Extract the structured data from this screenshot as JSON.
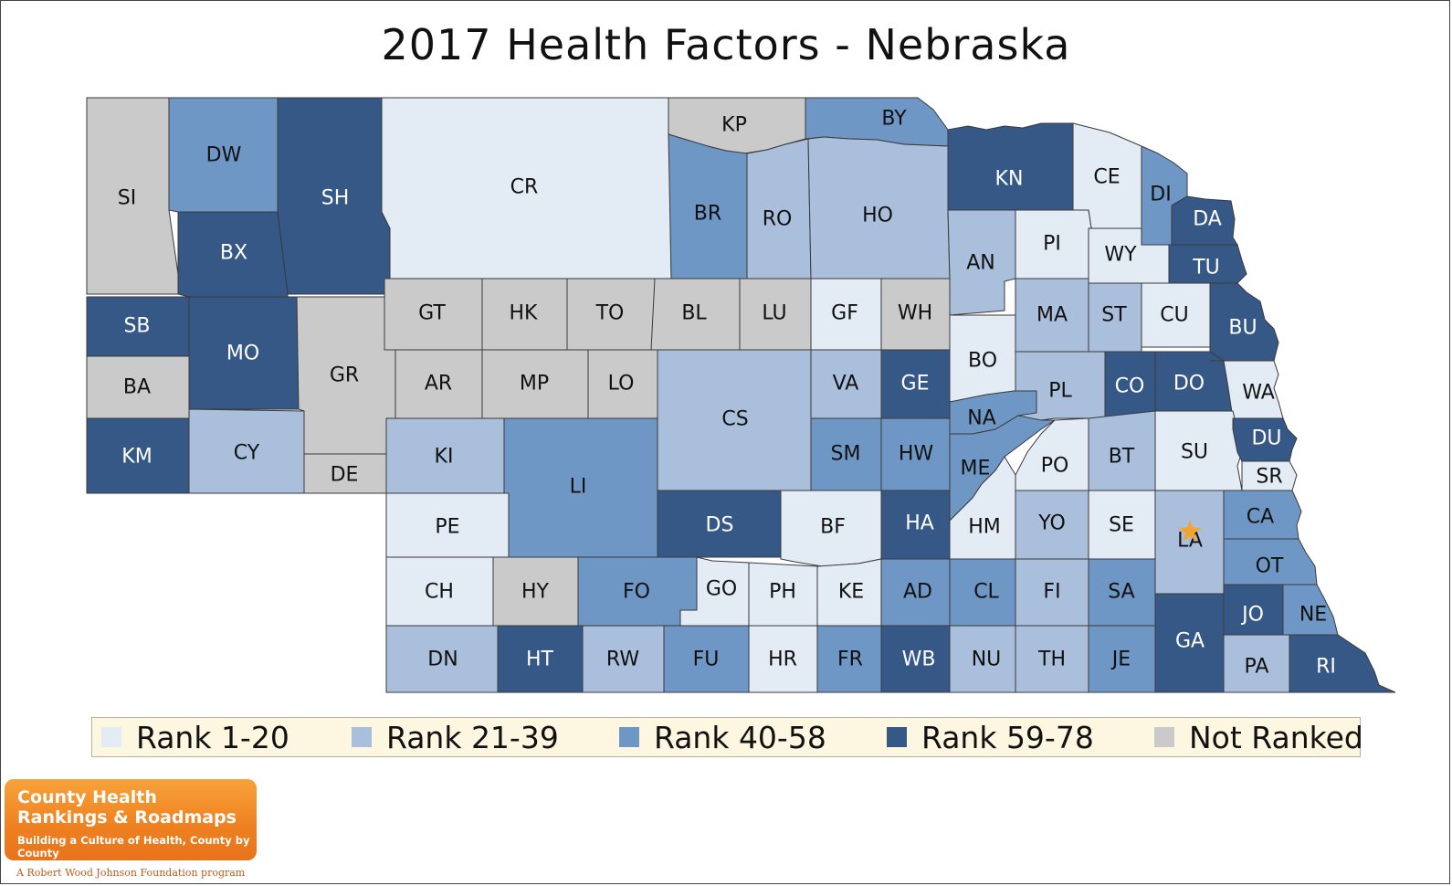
{
  "title": "2017 Health Factors - Nebraska",
  "colors": {
    "rank_1_20": "#e3ebf5",
    "rank_21_39": "#a9bfdc",
    "rank_40_58": "#6f97c6",
    "rank_59_78": "#355886",
    "not_ranked": "#cacaca",
    "star": "#f0a531",
    "label_dark_text": "#ffffff",
    "label_light_text": "#111111"
  },
  "legend": [
    {
      "label": "Rank 1-20",
      "cat": "rank_1_20"
    },
    {
      "label": "Rank 21-39",
      "cat": "rank_21_39"
    },
    {
      "label": "Rank 40-58",
      "cat": "rank_40_58"
    },
    {
      "label": "Rank 59-78",
      "cat": "rank_59_78"
    },
    {
      "label": "Not Ranked",
      "cat": "not_ranked"
    }
  ],
  "counties": [
    {
      "code": "SI",
      "cat": "not_ranked"
    },
    {
      "code": "DW",
      "cat": "rank_40_58"
    },
    {
      "code": "SH",
      "cat": "rank_59_78"
    },
    {
      "code": "CR",
      "cat": "rank_1_20"
    },
    {
      "code": "KP",
      "cat": "not_ranked"
    },
    {
      "code": "BY",
      "cat": "rank_40_58"
    },
    {
      "code": "BR",
      "cat": "rank_40_58"
    },
    {
      "code": "RO",
      "cat": "rank_21_39"
    },
    {
      "code": "HO",
      "cat": "rank_21_39"
    },
    {
      "code": "KN",
      "cat": "rank_59_78"
    },
    {
      "code": "CE",
      "cat": "rank_1_20"
    },
    {
      "code": "DI",
      "cat": "rank_40_58"
    },
    {
      "code": "DA",
      "cat": "rank_59_78"
    },
    {
      "code": "BX",
      "cat": "rank_59_78"
    },
    {
      "code": "AN",
      "cat": "rank_21_39"
    },
    {
      "code": "PI",
      "cat": "rank_1_20"
    },
    {
      "code": "WY",
      "cat": "rank_1_20"
    },
    {
      "code": "TU",
      "cat": "rank_59_78"
    },
    {
      "code": "SB",
      "cat": "rank_59_78"
    },
    {
      "code": "MO",
      "cat": "rank_59_78"
    },
    {
      "code": "GR",
      "cat": "not_ranked"
    },
    {
      "code": "GT",
      "cat": "not_ranked"
    },
    {
      "code": "HK",
      "cat": "not_ranked"
    },
    {
      "code": "TO",
      "cat": "not_ranked"
    },
    {
      "code": "BL",
      "cat": "not_ranked"
    },
    {
      "code": "LU",
      "cat": "not_ranked"
    },
    {
      "code": "GF",
      "cat": "rank_1_20"
    },
    {
      "code": "WH",
      "cat": "not_ranked"
    },
    {
      "code": "MA",
      "cat": "rank_21_39"
    },
    {
      "code": "ST",
      "cat": "rank_21_39"
    },
    {
      "code": "CU",
      "cat": "rank_1_20"
    },
    {
      "code": "BU",
      "cat": "rank_59_78"
    },
    {
      "code": "BA",
      "cat": "not_ranked"
    },
    {
      "code": "AR",
      "cat": "not_ranked"
    },
    {
      "code": "MP",
      "cat": "not_ranked"
    },
    {
      "code": "LO",
      "cat": "not_ranked"
    },
    {
      "code": "CS",
      "cat": "rank_21_39"
    },
    {
      "code": "VA",
      "cat": "rank_21_39"
    },
    {
      "code": "GE",
      "cat": "rank_59_78"
    },
    {
      "code": "BO",
      "cat": "rank_1_20"
    },
    {
      "code": "PL",
      "cat": "rank_21_39"
    },
    {
      "code": "CO",
      "cat": "rank_59_78"
    },
    {
      "code": "DO",
      "cat": "rank_59_78"
    },
    {
      "code": "WA",
      "cat": "rank_1_20"
    },
    {
      "code": "NA",
      "cat": "rank_40_58"
    },
    {
      "code": "KM",
      "cat": "rank_59_78"
    },
    {
      "code": "CY",
      "cat": "rank_21_39"
    },
    {
      "code": "DE",
      "cat": "not_ranked"
    },
    {
      "code": "KI",
      "cat": "rank_21_39"
    },
    {
      "code": "LI",
      "cat": "rank_40_58"
    },
    {
      "code": "SM",
      "cat": "rank_40_58"
    },
    {
      "code": "HW",
      "cat": "rank_40_58"
    },
    {
      "code": "ME",
      "cat": "rank_40_58"
    },
    {
      "code": "PO",
      "cat": "rank_1_20"
    },
    {
      "code": "BT",
      "cat": "rank_21_39"
    },
    {
      "code": "SU",
      "cat": "rank_1_20"
    },
    {
      "code": "DU",
      "cat": "rank_59_78"
    },
    {
      "code": "SR",
      "cat": "rank_1_20"
    },
    {
      "code": "PE",
      "cat": "rank_1_20"
    },
    {
      "code": "DS",
      "cat": "rank_59_78"
    },
    {
      "code": "BF",
      "cat": "rank_1_20"
    },
    {
      "code": "HA",
      "cat": "rank_59_78"
    },
    {
      "code": "HM",
      "cat": "rank_1_20"
    },
    {
      "code": "YO",
      "cat": "rank_21_39"
    },
    {
      "code": "SE",
      "cat": "rank_1_20"
    },
    {
      "code": "LA",
      "cat": "rank_21_39"
    },
    {
      "code": "CA",
      "cat": "rank_40_58"
    },
    {
      "code": "CH",
      "cat": "rank_1_20"
    },
    {
      "code": "HY",
      "cat": "not_ranked"
    },
    {
      "code": "FO",
      "cat": "rank_40_58"
    },
    {
      "code": "GO",
      "cat": "rank_1_20"
    },
    {
      "code": "PH",
      "cat": "rank_1_20"
    },
    {
      "code": "KE",
      "cat": "rank_1_20"
    },
    {
      "code": "AD",
      "cat": "rank_40_58"
    },
    {
      "code": "CL",
      "cat": "rank_40_58"
    },
    {
      "code": "FI",
      "cat": "rank_21_39"
    },
    {
      "code": "SA",
      "cat": "rank_40_58"
    },
    {
      "code": "OT",
      "cat": "rank_40_58"
    },
    {
      "code": "JO",
      "cat": "rank_59_78"
    },
    {
      "code": "NE",
      "cat": "rank_40_58"
    },
    {
      "code": "GA",
      "cat": "rank_59_78"
    },
    {
      "code": "DN",
      "cat": "rank_21_39"
    },
    {
      "code": "HT",
      "cat": "rank_59_78"
    },
    {
      "code": "RW",
      "cat": "rank_21_39"
    },
    {
      "code": "FU",
      "cat": "rank_40_58"
    },
    {
      "code": "HR",
      "cat": "rank_1_20"
    },
    {
      "code": "FR",
      "cat": "rank_40_58"
    },
    {
      "code": "WB",
      "cat": "rank_59_78"
    },
    {
      "code": "NU",
      "cat": "rank_21_39"
    },
    {
      "code": "TH",
      "cat": "rank_21_39"
    },
    {
      "code": "JE",
      "cat": "rank_40_58"
    },
    {
      "code": "PA",
      "cat": "rank_21_39"
    },
    {
      "code": "RI",
      "cat": "rank_59_78"
    }
  ],
  "capital": {
    "county": "LA",
    "icon": "star-icon"
  },
  "logo": {
    "line1": "County Health",
    "line2": "Rankings & Roadmaps",
    "line3": "Building a Culture of Health, County by County",
    "subline": "A Robert Wood Johnson Foundation program"
  }
}
